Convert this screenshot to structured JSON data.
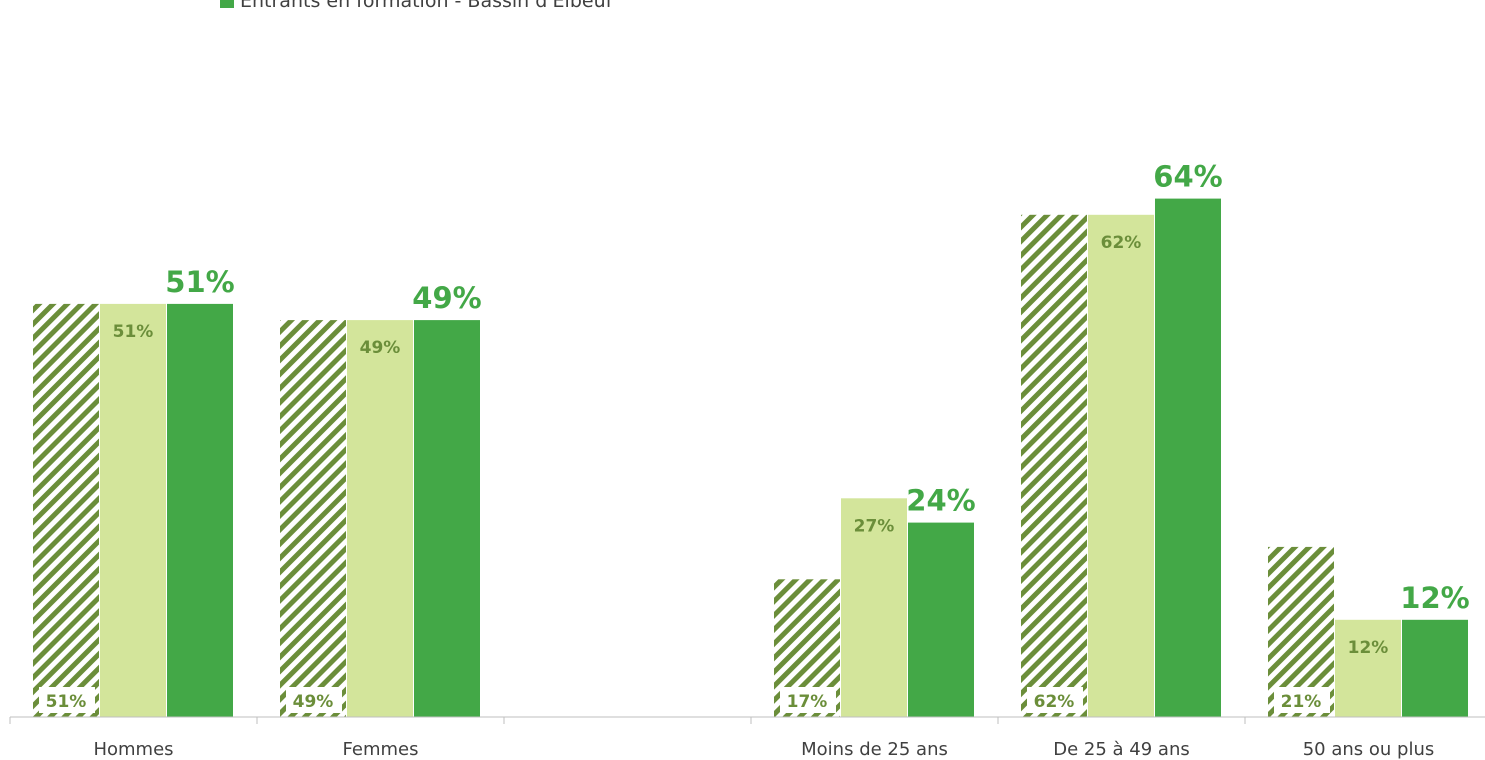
{
  "legend": {
    "series_3": "Entrants en formation - Bassin d'Elbeuf"
  },
  "colors": {
    "hatch": "#6b8e3a",
    "light_green": "#d3e59b",
    "dark_green": "#43a847",
    "inner_label": "#6b8e3a",
    "axis": "#bfbfbf",
    "text": "#404040"
  },
  "chart_data": {
    "type": "bar",
    "categories": [
      "Hommes",
      "Femmes",
      "",
      "Moins de 25 ans",
      "De 25 à 49 ans",
      "50 ans ou plus"
    ],
    "series": [
      {
        "style": "hatched",
        "values": [
          51,
          49,
          null,
          17,
          62,
          21
        ],
        "labels": [
          "51%",
          "49%",
          "",
          "17%",
          "62%",
          "21%"
        ]
      },
      {
        "style": "light",
        "values": [
          51,
          49,
          null,
          27,
          62,
          12
        ],
        "labels": [
          "51%",
          "49%",
          "",
          "27%",
          "62%",
          "12%"
        ]
      },
      {
        "name": "Entrants en formation - Bassin d'Elbeuf",
        "style": "dark",
        "values": [
          51,
          49,
          null,
          24,
          64,
          12
        ],
        "labels": [
          "51%",
          "49%",
          "",
          "24%",
          "64%",
          "12%"
        ]
      }
    ],
    "ylim": [
      0,
      65
    ],
    "grid": false,
    "legend_position": "top-left"
  }
}
